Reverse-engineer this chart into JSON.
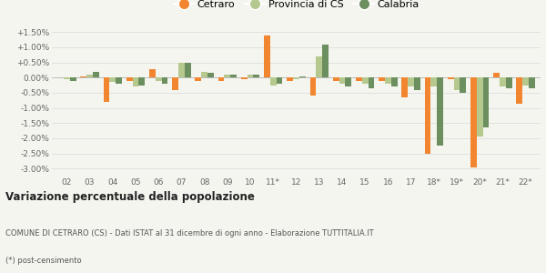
{
  "years": [
    "02",
    "03",
    "04",
    "05",
    "06",
    "07",
    "08",
    "09",
    "10",
    "11*",
    "12",
    "13",
    "14",
    "15",
    "16",
    "17",
    "18*",
    "19*",
    "20*",
    "21*",
    "22*"
  ],
  "cetraro": [
    0.0,
    0.05,
    -0.8,
    -0.1,
    0.28,
    -0.4,
    -0.1,
    -0.1,
    -0.05,
    1.4,
    -0.1,
    -0.6,
    -0.1,
    -0.1,
    -0.1,
    -0.65,
    -2.5,
    -0.05,
    -2.95,
    0.15,
    -0.85
  ],
  "provincia": [
    -0.05,
    0.1,
    -0.15,
    -0.3,
    -0.1,
    0.5,
    0.2,
    0.1,
    0.1,
    -0.25,
    -0.05,
    0.7,
    -0.2,
    -0.2,
    -0.2,
    -0.3,
    -0.3,
    -0.4,
    -1.95,
    -0.3,
    -0.25
  ],
  "calabria": [
    -0.1,
    0.2,
    -0.2,
    -0.25,
    -0.2,
    0.48,
    0.15,
    0.1,
    0.1,
    -0.2,
    0.05,
    1.08,
    -0.3,
    -0.35,
    -0.3,
    -0.4,
    -2.25,
    -0.5,
    -1.65,
    -0.35,
    -0.35
  ],
  "color_cetraro": "#f28630",
  "color_provincia": "#b5c98e",
  "color_calabria": "#6b8f5e",
  "bar_width": 0.27,
  "ylim_min": -3.25,
  "ylim_max": 1.75,
  "yticks": [
    -3.0,
    -2.5,
    -2.0,
    -1.5,
    -1.0,
    -0.5,
    0.0,
    0.5,
    1.0,
    1.5
  ],
  "ytick_labels": [
    "-3.00%",
    "-2.50%",
    "-2.00%",
    "-1.50%",
    "-1.00%",
    "-0.50%",
    "0.00%",
    "+0.50%",
    "+1.00%",
    "+1.50%"
  ],
  "title_bold": "Variazione percentuale della popolazione",
  "footnote1": "COMUNE DI CETRARO (CS) - Dati ISTAT al 31 dicembre di ogni anno - Elaborazione TUTTITALIA.IT",
  "footnote2": "(*) post-censimento",
  "bg_color": "#f5f5f0",
  "grid_color": "#dddddd",
  "legend_labels": [
    "Cetraro",
    "Provincia di CS",
    "Calabria"
  ]
}
